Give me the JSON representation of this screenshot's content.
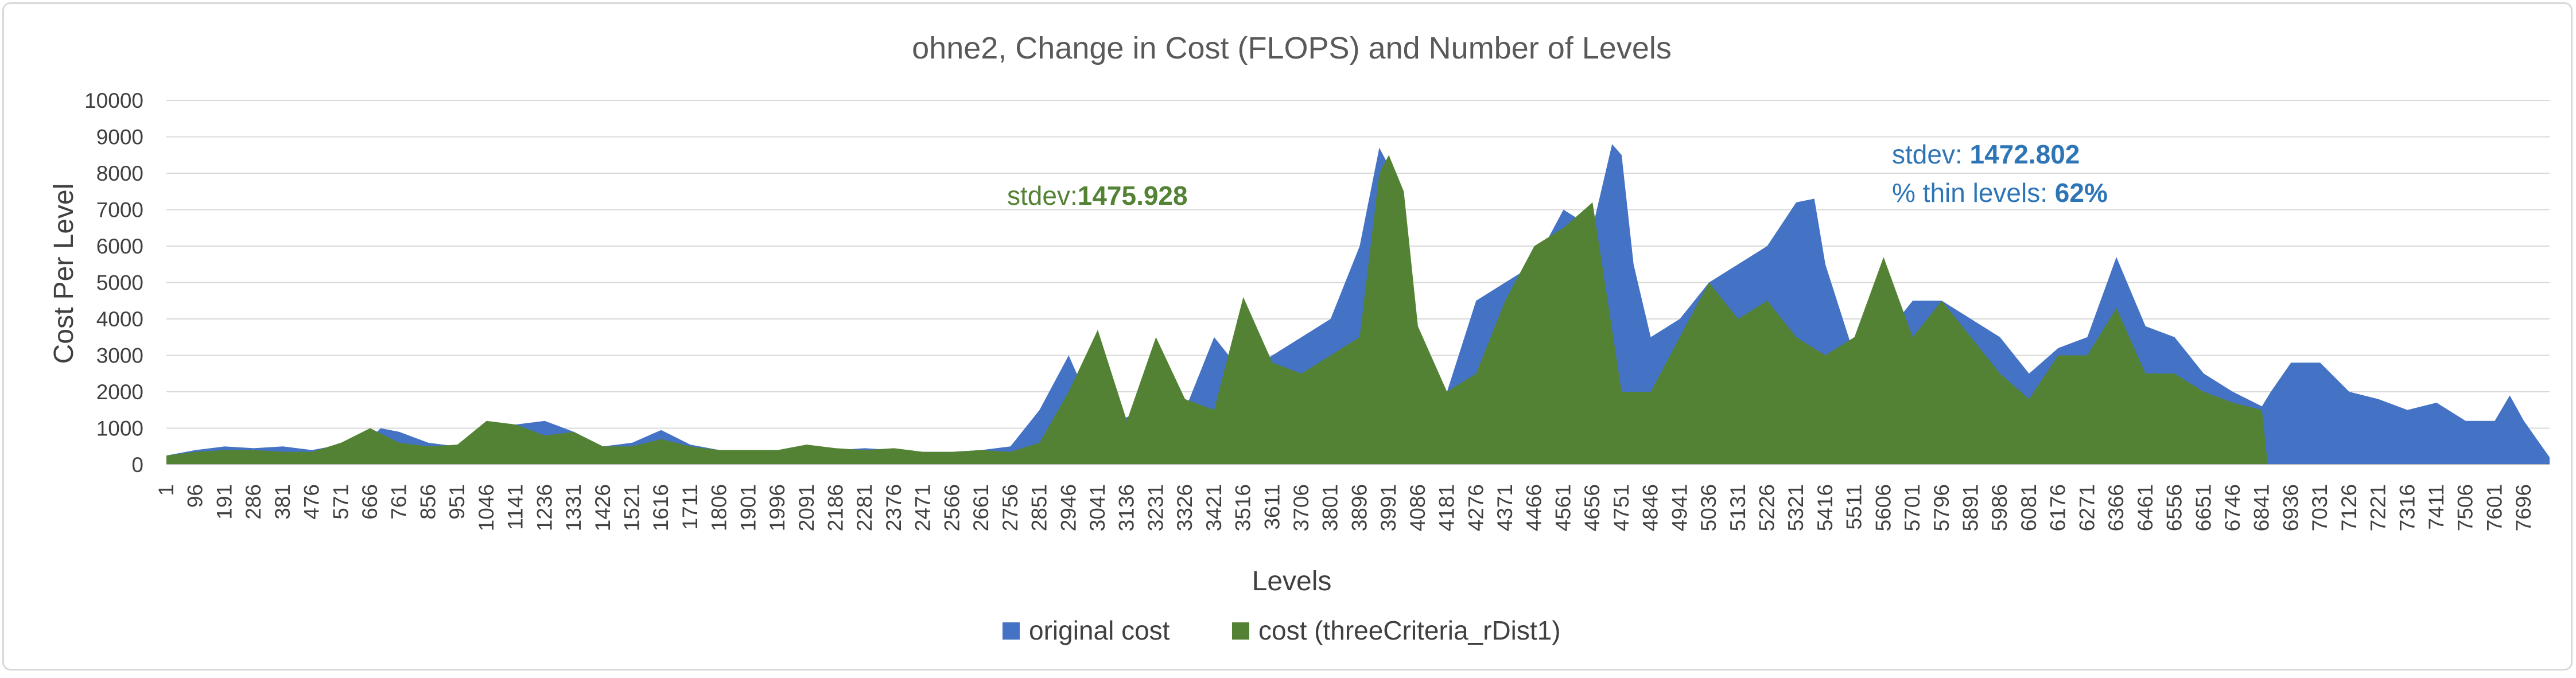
{
  "chart_data": {
    "type": "area",
    "title": "ohne2, Change in Cost (FLOPS) and Number of Levels",
    "xlabel": "Levels",
    "ylabel": "Cost Per Level",
    "ylim": [
      0,
      10000
    ],
    "y_ticks": [
      "0",
      "1000",
      "2000",
      "3000",
      "4000",
      "5000",
      "6000",
      "7000",
      "8000",
      "9000",
      "10000"
    ],
    "x_tick_labels": [
      "1",
      "96",
      "191",
      "286",
      "381",
      "476",
      "571",
      "666",
      "761",
      "856",
      "951",
      "1046",
      "1141",
      "1236",
      "1331",
      "1426",
      "1521",
      "1616",
      "1711",
      "1806",
      "1901",
      "1996",
      "2091",
      "2186",
      "2281",
      "2376",
      "2471",
      "2566",
      "2661",
      "2756",
      "2851",
      "2946",
      "3041",
      "3136",
      "3231",
      "3326",
      "3421",
      "3516",
      "3611",
      "3706",
      "3801",
      "3896",
      "3991",
      "4086",
      "4181",
      "4276",
      "4371",
      "4466",
      "4561",
      "4656",
      "4751",
      "4846",
      "4941",
      "5036",
      "5131",
      "5226",
      "5321",
      "5416",
      "5511",
      "5606",
      "5701",
      "5796",
      "5891",
      "5986",
      "6081",
      "6176",
      "6271",
      "6366",
      "6461",
      "6556",
      "6651",
      "6746",
      "6841",
      "6936",
      "7031",
      "7126",
      "7221",
      "7316",
      "7411",
      "7506",
      "7601",
      "7696"
    ],
    "x_tick_step": 95,
    "x_range": [
      1,
      7780
    ],
    "grid": true,
    "legend_position": "bottom",
    "colors": {
      "original": "#4472c4",
      "new": "#548235",
      "gridline": "#d9d9d9",
      "annotation_green": "#548235",
      "annotation_blue": "#2e75b6"
    },
    "series": [
      {
        "name": "original cost",
        "x": [
          1,
          96,
          191,
          286,
          381,
          476,
          571,
          666,
          700,
          761,
          856,
          951,
          1046,
          1141,
          1236,
          1331,
          1426,
          1521,
          1616,
          1711,
          1806,
          1901,
          1996,
          2091,
          2186,
          2281,
          2376,
          2471,
          2566,
          2661,
          2756,
          2851,
          2946,
          3041,
          3136,
          3231,
          3326,
          3421,
          3516,
          3611,
          3706,
          3801,
          3896,
          3960,
          3991,
          4040,
          4086,
          4181,
          4276,
          4371,
          4466,
          4561,
          4656,
          4720,
          4751,
          4790,
          4846,
          4941,
          5036,
          5131,
          5226,
          5321,
          5380,
          5416,
          5511,
          5606,
          5701,
          5796,
          5891,
          5986,
          6081,
          6176,
          6271,
          6366,
          6461,
          6556,
          6651,
          6746,
          6841,
          6870,
          6936,
          7031,
          7126,
          7221,
          7316,
          7411,
          7506,
          7601,
          7650,
          7696,
          7780
        ],
        "values": [
          250,
          400,
          500,
          450,
          500,
          400,
          550,
          700,
          1000,
          900,
          600,
          500,
          900,
          1100,
          1200,
          900,
          500,
          600,
          950,
          550,
          400,
          350,
          350,
          400,
          400,
          450,
          400,
          350,
          350,
          400,
          500,
          1500,
          3000,
          1200,
          1300,
          1700,
          1500,
          3500,
          2500,
          3000,
          3500,
          4000,
          6000,
          8700,
          8200,
          4000,
          2500,
          2000,
          4500,
          5000,
          5500,
          7000,
          6500,
          8800,
          8500,
          5500,
          3500,
          4000,
          5000,
          5500,
          6000,
          7200,
          7300,
          5500,
          3000,
          3500,
          4500,
          4500,
          4000,
          3500,
          2500,
          3200,
          3500,
          5700,
          3800,
          3500,
          2500,
          2000,
          1600,
          2000,
          2800,
          2800,
          2000,
          1800,
          1500,
          1700,
          1200,
          1200,
          1900,
          1200,
          200
        ]
      },
      {
        "name": "cost (threeCriteria_rDist1)",
        "x": [
          1,
          96,
          191,
          286,
          381,
          476,
          571,
          666,
          761,
          856,
          951,
          1046,
          1141,
          1236,
          1331,
          1426,
          1521,
          1616,
          1711,
          1806,
          1901,
          1996,
          2091,
          2186,
          2281,
          2376,
          2471,
          2566,
          2661,
          2756,
          2851,
          2946,
          3041,
          3136,
          3231,
          3326,
          3421,
          3516,
          3611,
          3706,
          3801,
          3896,
          3960,
          3991,
          4040,
          4086,
          4181,
          4276,
          4371,
          4466,
          4561,
          4656,
          4751,
          4846,
          4941,
          5036,
          5131,
          5226,
          5321,
          5416,
          5511,
          5606,
          5701,
          5796,
          5891,
          5986,
          6081,
          6176,
          6271,
          6366,
          6461,
          6556,
          6651,
          6746,
          6841,
          6860
        ],
        "values": [
          250,
          350,
          400,
          400,
          350,
          350,
          600,
          1000,
          600,
          500,
          550,
          1200,
          1100,
          800,
          900,
          500,
          500,
          700,
          500,
          400,
          400,
          400,
          550,
          450,
          400,
          450,
          350,
          350,
          400,
          350,
          600,
          2000,
          3700,
          1200,
          3500,
          1800,
          1500,
          4600,
          2800,
          2500,
          3000,
          3500,
          8000,
          8500,
          7500,
          3800,
          2000,
          2500,
          4500,
          6000,
          6500,
          7200,
          2000,
          2000,
          3500,
          5000,
          4000,
          4500,
          3500,
          3000,
          3500,
          5700,
          3500,
          4500,
          3500,
          2500,
          1800,
          3000,
          3000,
          4300,
          2500,
          2500,
          2000,
          1700,
          1500,
          0
        ]
      }
    ],
    "annotations": [
      {
        "id": "new",
        "prefix": "stdev:",
        "value": "1475.928"
      },
      {
        "id": "orig_stdev",
        "prefix": "stdev: ",
        "value": "1472.802"
      },
      {
        "id": "orig_thin",
        "prefix": "% thin levels: ",
        "value": "62%"
      }
    ]
  }
}
